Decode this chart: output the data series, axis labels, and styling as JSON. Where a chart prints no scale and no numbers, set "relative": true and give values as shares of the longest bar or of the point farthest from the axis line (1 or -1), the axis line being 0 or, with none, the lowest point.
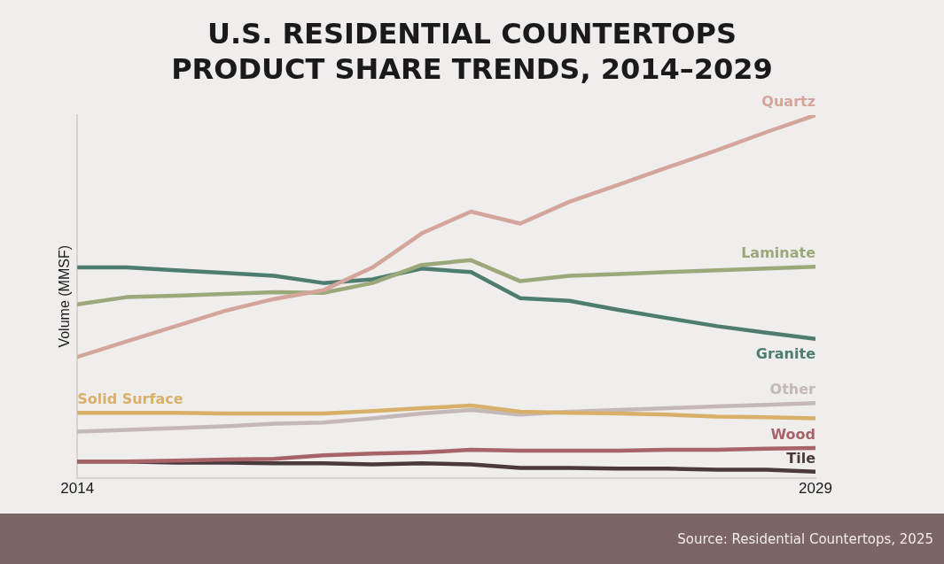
{
  "chart_data": {
    "type": "line",
    "title": "U.S. RESIDENTIAL COUNTERTOPS PRODUCT SHARE TRENDS, 2014–2029",
    "ylabel": "Volume (MMSF)",
    "relative": true,
    "x": [
      2014,
      2015,
      2016,
      2017,
      2018,
      2019,
      2020,
      2021,
      2022,
      2023,
      2024,
      2025,
      2026,
      2027,
      2028,
      2029
    ],
    "xlim": [
      2014,
      2029
    ],
    "xticks": [
      2014,
      2029
    ],
    "grid": false,
    "legend": false,
    "marker": "none",
    "line_style": "solid",
    "series": [
      {
        "name": "Quartz",
        "color": "#d4a59a",
        "values": [
          0.333,
          0.376,
          0.418,
          0.46,
          0.493,
          0.517,
          0.58,
          0.674,
          0.734,
          0.701,
          0.761,
          0.808,
          0.856,
          0.903,
          0.953,
          1
        ]
      },
      {
        "name": "Laminate",
        "color": "#9aa87a",
        "values": [
          0.478,
          0.498,
          0.502,
          0.507,
          0.512,
          0.51,
          0.537,
          0.587,
          0.6,
          0.542,
          0.557,
          0.562,
          0.567,
          0.572,
          0.577,
          0.582
        ]
      },
      {
        "name": "Granite",
        "color": "#4e7d70",
        "values": [
          0.58,
          0.58,
          0.572,
          0.565,
          0.557,
          0.537,
          0.547,
          0.577,
          0.567,
          0.495,
          0.488,
          0.463,
          0.44,
          0.418,
          0.4,
          0.383
        ]
      },
      {
        "name": "Solid Surface",
        "color": "#d8b06a",
        "values": [
          0.179,
          0.179,
          0.179,
          0.177,
          0.177,
          0.177,
          0.184,
          0.192,
          0.199,
          0.182,
          0.179,
          0.177,
          0.174,
          0.169,
          0.167,
          0.164
        ]
      },
      {
        "name": "Other",
        "color": "#c4b8b8",
        "values": [
          0.127,
          0.132,
          0.137,
          0.142,
          0.149,
          0.152,
          0.164,
          0.177,
          0.187,
          0.174,
          0.182,
          0.187,
          0.192,
          0.197,
          0.201,
          0.206
        ]
      },
      {
        "name": "Wood",
        "color": "#a8636a",
        "values": [
          0.045,
          0.045,
          0.047,
          0.05,
          0.052,
          0.062,
          0.067,
          0.07,
          0.077,
          0.075,
          0.075,
          0.075,
          0.077,
          0.077,
          0.08,
          0.082
        ]
      },
      {
        "name": "Tile",
        "color": "#4a3a3e",
        "values": [
          0.045,
          0.045,
          0.042,
          0.042,
          0.04,
          0.04,
          0.037,
          0.04,
          0.037,
          0.027,
          0.027,
          0.025,
          0.025,
          0.022,
          0.022,
          0.017
        ]
      }
    ],
    "annotations": [
      "Source: Residential Countertops, 2025"
    ]
  }
}
